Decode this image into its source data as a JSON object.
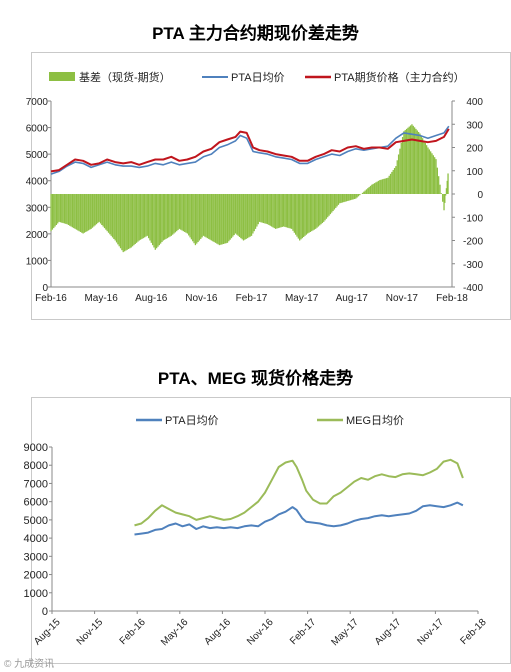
{
  "chart_data": [
    {
      "type": "bar+line",
      "title": "PTA 主力合约期现价差走势",
      "legend": [
        "基差（现货-期货）",
        "PTA日均价",
        "PTA期货价格（主力合约）"
      ],
      "legend_position": "top",
      "x_tick_labels": [
        "Feb-16",
        "May-16",
        "Aug-16",
        "Nov-16",
        "Feb-17",
        "May-17",
        "Aug-17",
        "Nov-17",
        "Feb-18"
      ],
      "y_left": {
        "ticks": [
          0,
          1000,
          2000,
          3000,
          4000,
          5000,
          6000,
          7000
        ],
        "lim": [
          0,
          7000
        ]
      },
      "y_right": {
        "ticks": [
          -400,
          -300,
          -200,
          -100,
          0,
          100,
          200,
          300,
          400
        ],
        "lim": [
          -400,
          400
        ]
      },
      "x_range": [
        0,
        25
      ],
      "series": [
        {
          "name": "PTA日均价",
          "axis": "left",
          "color": "#4f81bd",
          "points": [
            [
              0,
              4250
            ],
            [
              0.5,
              4350
            ],
            [
              1,
              4550
            ],
            [
              1.5,
              4700
            ],
            [
              2,
              4650
            ],
            [
              2.5,
              4500
            ],
            [
              3,
              4600
            ],
            [
              3.5,
              4700
            ],
            [
              4,
              4600
            ],
            [
              4.5,
              4550
            ],
            [
              5,
              4550
            ],
            [
              5.5,
              4500
            ],
            [
              6,
              4550
            ],
            [
              6.5,
              4650
            ],
            [
              7,
              4600
            ],
            [
              7.5,
              4700
            ],
            [
              8,
              4600
            ],
            [
              8.5,
              4650
            ],
            [
              9,
              4700
            ],
            [
              9.5,
              4900
            ],
            [
              10,
              5000
            ],
            [
              10.5,
              5250
            ],
            [
              11,
              5350
            ],
            [
              11.5,
              5500
            ],
            [
              11.8,
              5700
            ],
            [
              12.2,
              5600
            ],
            [
              12.6,
              5100
            ],
            [
              13,
              5050
            ],
            [
              13.5,
              5000
            ],
            [
              14,
              4900
            ],
            [
              14.5,
              4850
            ],
            [
              15,
              4800
            ],
            [
              15.5,
              4650
            ],
            [
              16,
              4650
            ],
            [
              16.5,
              4800
            ],
            [
              17,
              4900
            ],
            [
              17.5,
              5000
            ],
            [
              18,
              4950
            ],
            [
              18.5,
              5100
            ],
            [
              19,
              5200
            ],
            [
              19.5,
              5150
            ],
            [
              20,
              5200
            ],
            [
              20.5,
              5250
            ],
            [
              21,
              5300
            ],
            [
              21.5,
              5600
            ],
            [
              22,
              5800
            ],
            [
              22.5,
              5750
            ],
            [
              23,
              5700
            ],
            [
              23.5,
              5600
            ],
            [
              24,
              5700
            ],
            [
              24.5,
              5800
            ],
            [
              24.8,
              6050
            ]
          ]
        },
        {
          "name": "PTA期货价格（主力合约）",
          "axis": "left",
          "color": "#c0151d",
          "points": [
            [
              0,
              4350
            ],
            [
              0.5,
              4400
            ],
            [
              1,
              4600
            ],
            [
              1.5,
              4800
            ],
            [
              2,
              4750
            ],
            [
              2.5,
              4600
            ],
            [
              3,
              4650
            ],
            [
              3.5,
              4800
            ],
            [
              4,
              4700
            ],
            [
              4.5,
              4650
            ],
            [
              5,
              4700
            ],
            [
              5.5,
              4600
            ],
            [
              6,
              4700
            ],
            [
              6.5,
              4800
            ],
            [
              7,
              4800
            ],
            [
              7.5,
              4900
            ],
            [
              8,
              4750
            ],
            [
              8.5,
              4800
            ],
            [
              9,
              4900
            ],
            [
              9.5,
              5100
            ],
            [
              10,
              5200
            ],
            [
              10.5,
              5450
            ],
            [
              11,
              5550
            ],
            [
              11.5,
              5650
            ],
            [
              11.8,
              5850
            ],
            [
              12.2,
              5800
            ],
            [
              12.6,
              5250
            ],
            [
              13,
              5150
            ],
            [
              13.5,
              5100
            ],
            [
              14,
              5000
            ],
            [
              14.5,
              4950
            ],
            [
              15,
              4900
            ],
            [
              15.5,
              4750
            ],
            [
              16,
              4750
            ],
            [
              16.5,
              4900
            ],
            [
              17,
              5000
            ],
            [
              17.5,
              5150
            ],
            [
              18,
              5100
            ],
            [
              18.5,
              5250
            ],
            [
              19,
              5300
            ],
            [
              19.5,
              5200
            ],
            [
              20,
              5250
            ],
            [
              20.5,
              5250
            ],
            [
              21,
              5200
            ],
            [
              21.5,
              5450
            ],
            [
              22,
              5500
            ],
            [
              22.5,
              5550
            ],
            [
              23,
              5500
            ],
            [
              23.5,
              5450
            ],
            [
              24,
              5500
            ],
            [
              24.5,
              5650
            ],
            [
              24.8,
              5950
            ]
          ]
        },
        {
          "name": "基差（现货-期货）",
          "axis": "right",
          "color": "#8dbf43",
          "points": [
            [
              0,
              -160
            ],
            [
              0.5,
              -120
            ],
            [
              1,
              -130
            ],
            [
              1.5,
              -150
            ],
            [
              2,
              -170
            ],
            [
              2.5,
              -150
            ],
            [
              3,
              -120
            ],
            [
              3.5,
              -160
            ],
            [
              4,
              -200
            ],
            [
              4.5,
              -250
            ],
            [
              5,
              -230
            ],
            [
              5.5,
              -200
            ],
            [
              6,
              -180
            ],
            [
              6.5,
              -240
            ],
            [
              7,
              -200
            ],
            [
              7.5,
              -180
            ],
            [
              8,
              -150
            ],
            [
              8.5,
              -170
            ],
            [
              9,
              -220
            ],
            [
              9.5,
              -180
            ],
            [
              10,
              -200
            ],
            [
              10.5,
              -220
            ],
            [
              11,
              -210
            ],
            [
              11.5,
              -170
            ],
            [
              12,
              -200
            ],
            [
              12.5,
              -180
            ],
            [
              13,
              -120
            ],
            [
              13.5,
              -130
            ],
            [
              14,
              -150
            ],
            [
              14.5,
              -140
            ],
            [
              15,
              -150
            ],
            [
              15.5,
              -200
            ],
            [
              16,
              -170
            ],
            [
              16.5,
              -150
            ],
            [
              17,
              -120
            ],
            [
              17.5,
              -80
            ],
            [
              18,
              -40
            ],
            [
              18.5,
              -30
            ],
            [
              19,
              -20
            ],
            [
              19.5,
              10
            ],
            [
              20,
              40
            ],
            [
              20.5,
              60
            ],
            [
              21,
              70
            ],
            [
              21.5,
              120
            ],
            [
              22,
              270
            ],
            [
              22.5,
              300
            ],
            [
              23,
              260
            ],
            [
              23.5,
              200
            ],
            [
              24,
              150
            ],
            [
              24.5,
              -70
            ],
            [
              24.8,
              120
            ]
          ]
        }
      ]
    },
    {
      "type": "line",
      "title": "PTA、MEG 现货价格走势",
      "legend": [
        "PTA日均价",
        "MEG日均价"
      ],
      "legend_position": "top",
      "x_tick_labels": [
        "Aug-15",
        "Nov-15",
        "Feb-16",
        "May-16",
        "Aug-16",
        "Nov-16",
        "Feb-17",
        "May-17",
        "Aug-17",
        "Nov-17",
        "Feb-18"
      ],
      "y": {
        "ticks": [
          0,
          1000,
          2000,
          3000,
          4000,
          5000,
          6000,
          7000,
          8000,
          9000
        ],
        "lim": [
          0,
          9000
        ]
      },
      "x_range": [
        0,
        31
      ],
      "series": [
        {
          "name": "PTA日均价",
          "color": "#4f81bd",
          "points": [
            [
              6,
              4200
            ],
            [
              6.5,
              4250
            ],
            [
              7,
              4300
            ],
            [
              7.5,
              4450
            ],
            [
              8,
              4500
            ],
            [
              8.5,
              4700
            ],
            [
              9,
              4800
            ],
            [
              9.5,
              4650
            ],
            [
              10,
              4750
            ],
            [
              10.5,
              4500
            ],
            [
              11,
              4650
            ],
            [
              11.5,
              4550
            ],
            [
              12,
              4600
            ],
            [
              12.5,
              4550
            ],
            [
              13,
              4600
            ],
            [
              13.5,
              4550
            ],
            [
              14,
              4650
            ],
            [
              14.5,
              4700
            ],
            [
              15,
              4650
            ],
            [
              15.5,
              4900
            ],
            [
              16,
              5050
            ],
            [
              16.5,
              5300
            ],
            [
              17,
              5450
            ],
            [
              17.5,
              5700
            ],
            [
              17.8,
              5550
            ],
            [
              18.2,
              5100
            ],
            [
              18.5,
              4900
            ],
            [
              19,
              4850
            ],
            [
              19.5,
              4800
            ],
            [
              20,
              4700
            ],
            [
              20.5,
              4650
            ],
            [
              21,
              4700
            ],
            [
              21.5,
              4800
            ],
            [
              22,
              4950
            ],
            [
              22.5,
              5050
            ],
            [
              23,
              5100
            ],
            [
              23.5,
              5200
            ],
            [
              24,
              5250
            ],
            [
              24.5,
              5200
            ],
            [
              25,
              5250
            ],
            [
              25.5,
              5300
            ],
            [
              26,
              5350
            ],
            [
              26.5,
              5500
            ],
            [
              27,
              5750
            ],
            [
              27.5,
              5800
            ],
            [
              28,
              5750
            ],
            [
              28.5,
              5700
            ],
            [
              29,
              5800
            ],
            [
              29.5,
              5950
            ],
            [
              29.9,
              5800
            ]
          ]
        },
        {
          "name": "MEG日均价",
          "color": "#9bbb59",
          "points": [
            [
              6,
              4700
            ],
            [
              6.5,
              4800
            ],
            [
              7,
              5100
            ],
            [
              7.5,
              5500
            ],
            [
              8,
              5800
            ],
            [
              8.5,
              5600
            ],
            [
              9,
              5400
            ],
            [
              9.5,
              5300
            ],
            [
              10,
              5200
            ],
            [
              10.5,
              5000
            ],
            [
              11,
              5100
            ],
            [
              11.5,
              5200
            ],
            [
              12,
              5100
            ],
            [
              12.5,
              5000
            ],
            [
              13,
              5050
            ],
            [
              13.5,
              5200
            ],
            [
              14,
              5400
            ],
            [
              14.5,
              5700
            ],
            [
              15,
              6000
            ],
            [
              15.5,
              6500
            ],
            [
              16,
              7200
            ],
            [
              16.5,
              7900
            ],
            [
              17,
              8150
            ],
            [
              17.5,
              8250
            ],
            [
              17.8,
              7900
            ],
            [
              18.2,
              7200
            ],
            [
              18.5,
              6600
            ],
            [
              19,
              6100
            ],
            [
              19.5,
              5900
            ],
            [
              20,
              5900
            ],
            [
              20.5,
              6300
            ],
            [
              21,
              6500
            ],
            [
              21.5,
              6800
            ],
            [
              22,
              7100
            ],
            [
              22.5,
              7300
            ],
            [
              23,
              7200
            ],
            [
              23.5,
              7400
            ],
            [
              24,
              7500
            ],
            [
              24.5,
              7400
            ],
            [
              25,
              7350
            ],
            [
              25.5,
              7500
            ],
            [
              26,
              7550
            ],
            [
              26.5,
              7500
            ],
            [
              27,
              7450
            ],
            [
              27.5,
              7600
            ],
            [
              28,
              7800
            ],
            [
              28.5,
              8200
            ],
            [
              29,
              8300
            ],
            [
              29.5,
              8100
            ],
            [
              29.9,
              7300
            ]
          ]
        }
      ]
    }
  ],
  "watermark": "© 九成资讯"
}
